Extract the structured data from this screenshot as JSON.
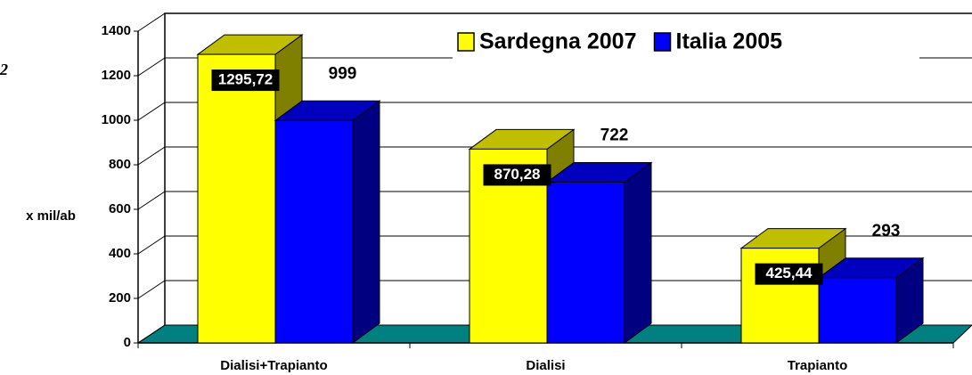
{
  "chart_data": {
    "type": "bar3d",
    "annotation": "2",
    "y_label": "x mil/ab",
    "categories": [
      "Dialisi+Trapianto",
      "Dialisi",
      "Trapianto"
    ],
    "series": [
      {
        "name": "Sardegna 2007",
        "color": "#ffff00",
        "values": [
          1295.72,
          870.28,
          425.44
        ],
        "value_labels": [
          "1295,72",
          "870,28",
          "425,44"
        ]
      },
      {
        "name": "Italia 2005",
        "color": "#0000ff",
        "values": [
          999,
          722,
          293
        ]
      }
    ],
    "ylim": [
      0,
      1400
    ],
    "yticks": [
      0,
      200,
      400,
      600,
      800,
      1000,
      1200,
      1400
    ],
    "grid": true,
    "legend": "top-right",
    "floor_color": "#008080"
  }
}
